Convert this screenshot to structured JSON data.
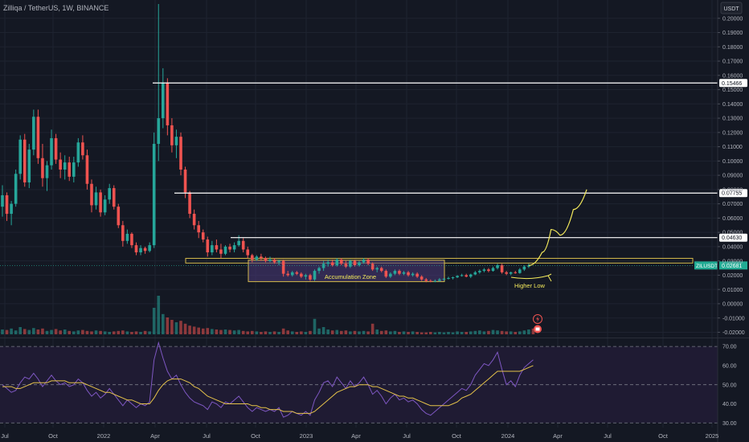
{
  "header": {
    "symbol_title": "Zilliqa / TetherUS, 1W, BINANCE",
    "currency": "USDT"
  },
  "colors": {
    "background": "#141823",
    "grid": "#1e2330",
    "up": "#26a69a",
    "down": "#ef5350",
    "zone_border": "#d4b94b",
    "zone_fill": "#4a3a7a",
    "level_line": "#ffffff",
    "annotation": "#f5eb5c",
    "rsi_line": "#7e57c2",
    "rsi_ma": "#e6c34a",
    "rsi_fill": "#1f1b33",
    "last_price_tag": "#22ab94"
  },
  "chart_data": [
    {
      "type": "candlestick",
      "title": "Zilliqa / TetherUS, 1W, BINANCE",
      "x_axis_labels": [
        "Jul",
        "Oct",
        "2022",
        "Apr",
        "Jul",
        "Oct",
        "2023",
        "Apr",
        "Jul",
        "Oct",
        "2024",
        "Apr",
        "Jul",
        "Oct",
        "2025"
      ],
      "y_ticks": [
        "0.20000",
        "0.19000",
        "0.18000",
        "0.17000",
        "0.16000",
        "0.15000",
        "0.14000",
        "0.13000",
        "0.12000",
        "0.11000",
        "0.10000",
        "0.09000",
        "0.08000",
        "0.07000",
        "0.06000",
        "0.05000",
        "0.04000",
        "0.03000",
        "0.02000",
        "0.01000",
        "0.00000",
        "-0.01000",
        "-0.02000"
      ],
      "ylim": [
        -0.022,
        0.21
      ],
      "price_levels": [
        "0.15466",
        "0.07755",
        "0.04630"
      ],
      "last_price": {
        "symbol": "ZILUSDT",
        "value": "0.02681"
      },
      "zones": [
        {
          "label": "Accumulation Zone",
          "low": 0.0155,
          "high": 0.0305
        }
      ],
      "support_band": {
        "low": 0.0285,
        "high": 0.0318
      },
      "annotations": [
        "Higher Low"
      ],
      "candles_ohlc": [
        [
          0.068,
          0.083,
          0.061,
          0.076
        ],
        [
          0.076,
          0.078,
          0.058,
          0.063
        ],
        [
          0.063,
          0.072,
          0.055,
          0.07
        ],
        [
          0.07,
          0.094,
          0.068,
          0.091
        ],
        [
          0.091,
          0.118,
          0.087,
          0.115
        ],
        [
          0.115,
          0.119,
          0.082,
          0.085
        ],
        [
          0.085,
          0.112,
          0.081,
          0.108
        ],
        [
          0.108,
          0.136,
          0.104,
          0.131
        ],
        [
          0.131,
          0.136,
          0.098,
          0.102
        ],
        [
          0.102,
          0.112,
          0.082,
          0.088
        ],
        [
          0.088,
          0.1,
          0.079,
          0.097
        ],
        [
          0.097,
          0.122,
          0.094,
          0.116
        ],
        [
          0.116,
          0.119,
          0.098,
          0.101
        ],
        [
          0.101,
          0.106,
          0.088,
          0.094
        ],
        [
          0.094,
          0.104,
          0.087,
          0.099
        ],
        [
          0.099,
          0.103,
          0.086,
          0.089
        ],
        [
          0.089,
          0.103,
          0.085,
          0.099
        ],
        [
          0.099,
          0.116,
          0.096,
          0.113
        ],
        [
          0.113,
          0.118,
          0.101,
          0.104
        ],
        [
          0.104,
          0.108,
          0.08,
          0.084
        ],
        [
          0.084,
          0.087,
          0.064,
          0.069
        ],
        [
          0.069,
          0.082,
          0.066,
          0.078
        ],
        [
          0.078,
          0.08,
          0.061,
          0.064
        ],
        [
          0.064,
          0.076,
          0.062,
          0.073
        ],
        [
          0.073,
          0.084,
          0.07,
          0.081
        ],
        [
          0.081,
          0.083,
          0.066,
          0.068
        ],
        [
          0.068,
          0.07,
          0.053,
          0.055
        ],
        [
          0.055,
          0.058,
          0.04,
          0.044
        ],
        [
          0.044,
          0.052,
          0.042,
          0.049
        ],
        [
          0.049,
          0.05,
          0.039,
          0.041
        ],
        [
          0.041,
          0.043,
          0.034,
          0.036
        ],
        [
          0.036,
          0.041,
          0.034,
          0.039
        ],
        [
          0.039,
          0.04,
          0.035,
          0.037
        ],
        [
          0.037,
          0.043,
          0.036,
          0.041
        ],
        [
          0.041,
          0.12,
          0.039,
          0.112
        ],
        [
          0.112,
          0.21,
          0.1,
          0.13
        ],
        [
          0.13,
          0.165,
          0.123,
          0.155
        ],
        [
          0.155,
          0.158,
          0.118,
          0.125
        ],
        [
          0.125,
          0.13,
          0.106,
          0.111
        ],
        [
          0.111,
          0.122,
          0.102,
          0.117
        ],
        [
          0.117,
          0.12,
          0.09,
          0.094
        ],
        [
          0.094,
          0.096,
          0.074,
          0.078
        ],
        [
          0.078,
          0.079,
          0.06,
          0.063
        ],
        [
          0.063,
          0.066,
          0.052,
          0.055
        ],
        [
          0.055,
          0.058,
          0.046,
          0.05
        ],
        [
          0.05,
          0.052,
          0.043,
          0.045
        ],
        [
          0.045,
          0.047,
          0.033,
          0.036
        ],
        [
          0.036,
          0.044,
          0.034,
          0.041
        ],
        [
          0.041,
          0.045,
          0.036,
          0.038
        ],
        [
          0.038,
          0.042,
          0.032,
          0.035
        ],
        [
          0.035,
          0.041,
          0.034,
          0.04
        ],
        [
          0.04,
          0.042,
          0.036,
          0.038
        ],
        [
          0.038,
          0.043,
          0.036,
          0.041
        ],
        [
          0.041,
          0.048,
          0.04,
          0.044
        ],
        [
          0.044,
          0.046,
          0.036,
          0.038
        ],
        [
          0.038,
          0.04,
          0.032,
          0.034
        ],
        [
          0.034,
          0.035,
          0.029,
          0.031
        ],
        [
          0.031,
          0.034,
          0.03,
          0.033
        ],
        [
          0.033,
          0.035,
          0.03,
          0.032
        ],
        [
          0.032,
          0.033,
          0.029,
          0.03
        ],
        [
          0.03,
          0.033,
          0.029,
          0.031
        ],
        [
          0.031,
          0.032,
          0.028,
          0.029
        ],
        [
          0.029,
          0.031,
          0.027,
          0.03
        ],
        [
          0.03,
          0.031,
          0.019,
          0.021
        ],
        [
          0.021,
          0.023,
          0.019,
          0.02
        ],
        [
          0.02,
          0.023,
          0.019,
          0.022
        ],
        [
          0.022,
          0.023,
          0.02,
          0.021
        ],
        [
          0.021,
          0.022,
          0.018,
          0.019
        ],
        [
          0.019,
          0.021,
          0.017,
          0.02
        ],
        [
          0.02,
          0.021,
          0.016,
          0.017
        ],
        [
          0.017,
          0.024,
          0.016,
          0.023
        ],
        [
          0.023,
          0.026,
          0.021,
          0.025
        ],
        [
          0.025,
          0.03,
          0.023,
          0.028
        ],
        [
          0.028,
          0.031,
          0.026,
          0.029
        ],
        [
          0.029,
          0.031,
          0.026,
          0.027
        ],
        [
          0.027,
          0.032,
          0.026,
          0.031
        ],
        [
          0.031,
          0.032,
          0.027,
          0.028
        ],
        [
          0.028,
          0.03,
          0.025,
          0.026
        ],
        [
          0.026,
          0.031,
          0.025,
          0.03
        ],
        [
          0.03,
          0.031,
          0.026,
          0.027
        ],
        [
          0.027,
          0.03,
          0.026,
          0.029
        ],
        [
          0.029,
          0.032,
          0.028,
          0.031
        ],
        [
          0.031,
          0.032,
          0.027,
          0.028
        ],
        [
          0.028,
          0.029,
          0.023,
          0.024
        ],
        [
          0.024,
          0.026,
          0.022,
          0.025
        ],
        [
          0.025,
          0.026,
          0.022,
          0.023
        ],
        [
          0.023,
          0.024,
          0.018,
          0.019
        ],
        [
          0.019,
          0.022,
          0.018,
          0.021
        ],
        [
          0.021,
          0.024,
          0.02,
          0.023
        ],
        [
          0.023,
          0.024,
          0.02,
          0.021
        ],
        [
          0.021,
          0.023,
          0.02,
          0.022
        ],
        [
          0.022,
          0.023,
          0.019,
          0.02
        ],
        [
          0.02,
          0.022,
          0.019,
          0.021
        ],
        [
          0.021,
          0.022,
          0.018,
          0.019
        ],
        [
          0.019,
          0.02,
          0.016,
          0.017
        ],
        [
          0.017,
          0.018,
          0.015,
          0.016
        ],
        [
          0.016,
          0.017,
          0.015,
          0.0155
        ],
        [
          0.0155,
          0.017,
          0.015,
          0.016
        ],
        [
          0.016,
          0.018,
          0.0155,
          0.017
        ],
        [
          0.017,
          0.018,
          0.016,
          0.0175
        ],
        [
          0.0175,
          0.019,
          0.017,
          0.018
        ],
        [
          0.018,
          0.019,
          0.017,
          0.0185
        ],
        [
          0.0185,
          0.02,
          0.018,
          0.0195
        ],
        [
          0.0195,
          0.021,
          0.019,
          0.02
        ],
        [
          0.02,
          0.021,
          0.0185,
          0.019
        ],
        [
          0.019,
          0.021,
          0.018,
          0.0205
        ],
        [
          0.0205,
          0.023,
          0.02,
          0.022
        ],
        [
          0.022,
          0.024,
          0.021,
          0.023
        ],
        [
          0.023,
          0.025,
          0.022,
          0.024
        ],
        [
          0.024,
          0.025,
          0.022,
          0.023
        ],
        [
          0.023,
          0.026,
          0.0225,
          0.025
        ],
        [
          0.025,
          0.028,
          0.024,
          0.027
        ],
        [
          0.027,
          0.028,
          0.021,
          0.022
        ],
        [
          0.022,
          0.023,
          0.02,
          0.021
        ],
        [
          0.021,
          0.0225,
          0.02,
          0.022
        ],
        [
          0.022,
          0.023,
          0.021,
          0.0215
        ],
        [
          0.0215,
          0.025,
          0.021,
          0.024
        ],
        [
          0.024,
          0.027,
          0.023,
          0.026
        ],
        [
          0.026,
          0.028,
          0.025,
          0.0268
        ]
      ],
      "volume_relative": [
        0.1,
        0.09,
        0.12,
        0.08,
        0.15,
        0.11,
        0.09,
        0.13,
        0.1,
        0.12,
        0.07,
        0.09,
        0.11,
        0.08,
        0.1,
        0.07,
        0.06,
        0.08,
        0.09,
        0.07,
        0.06,
        0.08,
        0.07,
        0.06,
        0.05,
        0.06,
        0.07,
        0.08,
        0.06,
        0.05,
        0.06,
        0.05,
        0.07,
        0.06,
        0.55,
        0.8,
        0.42,
        0.35,
        0.3,
        0.25,
        0.28,
        0.22,
        0.18,
        0.16,
        0.14,
        0.12,
        0.13,
        0.11,
        0.1,
        0.09,
        0.1,
        0.09,
        0.08,
        0.09,
        0.07,
        0.06,
        0.07,
        0.06,
        0.05,
        0.06,
        0.05,
        0.06,
        0.05,
        0.12,
        0.08,
        0.06,
        0.05,
        0.06,
        0.05,
        0.07,
        0.32,
        0.12,
        0.15,
        0.1,
        0.08,
        0.09,
        0.07,
        0.08,
        0.06,
        0.07,
        0.06,
        0.07,
        0.06,
        0.22,
        0.1,
        0.07,
        0.08,
        0.06,
        0.07,
        0.05,
        0.06,
        0.05,
        0.06,
        0.05,
        0.04,
        0.04,
        0.05,
        0.04,
        0.05,
        0.04,
        0.05,
        0.04,
        0.06,
        0.05,
        0.05,
        0.06,
        0.07,
        0.08,
        0.06,
        0.07,
        0.09,
        0.08,
        0.07,
        0.06,
        0.06,
        0.05,
        0.06,
        0.08,
        0.1,
        0.12
      ],
      "projection_path": [
        [
          0.0268,
          0
        ],
        [
          0.036,
          3
        ],
        [
          0.052,
          5
        ],
        [
          0.048,
          7
        ],
        [
          0.066,
          10
        ],
        [
          0.08,
          13
        ]
      ]
    },
    {
      "type": "line",
      "indicator": "RSI",
      "y_ticks": [
        "70.00",
        "60.00",
        "50.00",
        "40.00",
        "30.00"
      ],
      "ylim": [
        28,
        73
      ],
      "bands": [
        70,
        50,
        30
      ],
      "rsi_values": [
        50,
        48,
        46,
        47,
        51,
        54,
        53,
        56,
        53,
        49,
        52,
        55,
        52,
        50,
        51,
        49,
        50,
        53,
        51,
        47,
        44,
        46,
        43,
        45,
        48,
        45,
        42,
        39,
        42,
        40,
        38,
        40,
        39,
        41,
        63,
        72,
        64,
        57,
        53,
        55,
        50,
        46,
        43,
        41,
        40,
        39,
        37,
        41,
        40,
        38,
        41,
        40,
        42,
        44,
        41,
        38,
        36,
        38,
        37,
        36,
        37,
        36,
        38,
        33,
        34,
        36,
        35,
        34,
        36,
        34,
        42,
        46,
        51,
        52,
        49,
        54,
        51,
        48,
        52,
        49,
        51,
        54,
        50,
        45,
        47,
        44,
        40,
        43,
        45,
        42,
        43,
        41,
        42,
        40,
        37,
        35,
        34,
        36,
        38,
        40,
        42,
        44,
        46,
        48,
        47,
        50,
        55,
        58,
        61,
        60,
        63,
        67,
        58,
        50,
        52,
        49,
        55,
        59,
        61,
        63
      ],
      "rsi_ma_values": [
        49,
        49,
        49,
        48,
        48,
        49,
        50,
        51,
        51,
        51,
        51,
        52,
        52,
        52,
        52,
        51,
        51,
        51,
        51,
        50,
        49,
        48,
        47,
        46,
        46,
        45,
        44,
        43,
        42,
        42,
        41,
        40,
        40,
        40,
        43,
        47,
        50,
        52,
        53,
        53,
        53,
        52,
        51,
        49,
        48,
        46,
        44,
        43,
        42,
        41,
        40,
        40,
        40,
        40,
        40,
        40,
        39,
        39,
        38,
        38,
        37,
        37,
        37,
        36,
        36,
        36,
        35,
        35,
        35,
        35,
        36,
        38,
        40,
        42,
        44,
        46,
        47,
        48,
        49,
        49,
        50,
        50,
        50,
        49,
        49,
        48,
        47,
        46,
        45,
        44,
        44,
        43,
        43,
        42,
        41,
        40,
        39,
        39,
        39,
        39,
        39,
        40,
        41,
        43,
        44,
        45,
        47,
        49,
        51,
        53,
        55,
        57,
        57,
        57,
        57,
        57,
        57,
        58,
        59,
        60
      ]
    }
  ]
}
